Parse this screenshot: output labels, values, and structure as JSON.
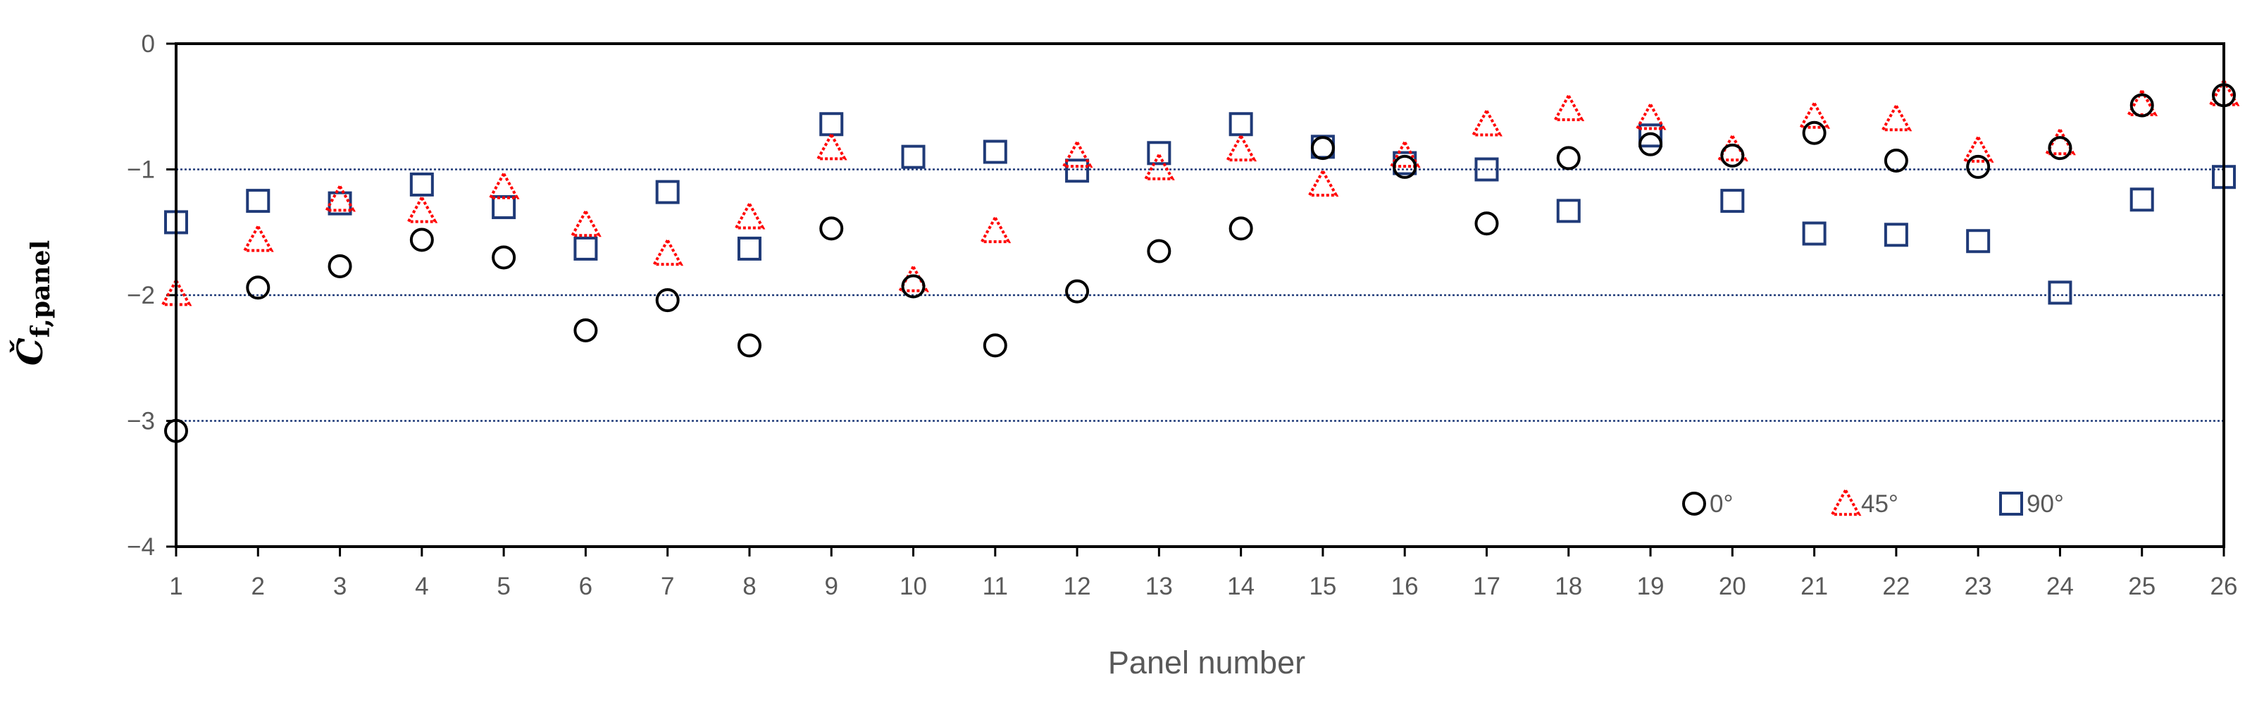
{
  "chart_data": {
    "type": "scatter",
    "xlabel": "Panel number",
    "ylabel": "Čf,panel",
    "ylabel_main": "Č",
    "ylabel_sub": "f,panel",
    "ylim": [
      -4,
      0
    ],
    "yticks": [
      0,
      -1,
      -2,
      -3,
      -4
    ],
    "ytick_labels": [
      "0",
      "−1",
      "−2",
      "−3",
      "−4"
    ],
    "grid_y_values": [
      -1,
      -2,
      -3
    ],
    "categories": [
      "1",
      "2",
      "3",
      "4",
      "5",
      "6",
      "7",
      "8",
      "9",
      "10",
      "11",
      "12",
      "13",
      "14",
      "15",
      "16",
      "17",
      "18",
      "19",
      "20",
      "21",
      "22",
      "23",
      "24",
      "25",
      "26"
    ],
    "legend_position": "bottom-right",
    "series": [
      {
        "name": "0°",
        "marker": "circle",
        "color": "#000000",
        "values": [
          -3.08,
          -1.94,
          -1.77,
          -1.56,
          -1.7,
          -2.28,
          -2.04,
          -2.4,
          -1.47,
          -1.93,
          -2.4,
          -1.97,
          -1.65,
          -1.47,
          -0.83,
          -0.98,
          -1.43,
          -0.91,
          -0.8,
          -0.89,
          -0.71,
          -0.93,
          -0.98,
          -0.83,
          -0.49,
          -0.41
        ]
      },
      {
        "name": "45°",
        "marker": "triangle",
        "color": "#ff0000",
        "values": [
          -1.99,
          -1.56,
          -1.24,
          -1.33,
          -1.14,
          -1.44,
          -1.67,
          -1.38,
          -0.83,
          -1.88,
          -1.49,
          -0.89,
          -0.99,
          -0.84,
          -1.12,
          -0.89,
          -0.64,
          -0.52,
          -0.59,
          -0.84,
          -0.58,
          -0.6,
          -0.85,
          -0.79,
          -0.48,
          -0.4
        ]
      },
      {
        "name": "90°",
        "marker": "square",
        "color": "#1f3a78",
        "values": [
          -1.42,
          -1.25,
          -1.27,
          -1.12,
          -1.3,
          -1.63,
          -1.18,
          -1.63,
          -0.64,
          -0.9,
          -0.86,
          -1.01,
          -0.87,
          -0.64,
          -0.82,
          -0.95,
          -1.0,
          -1.33,
          -0.73,
          -1.25,
          -1.51,
          -1.52,
          -1.57,
          -1.98,
          -1.24,
          -1.06
        ]
      }
    ]
  }
}
